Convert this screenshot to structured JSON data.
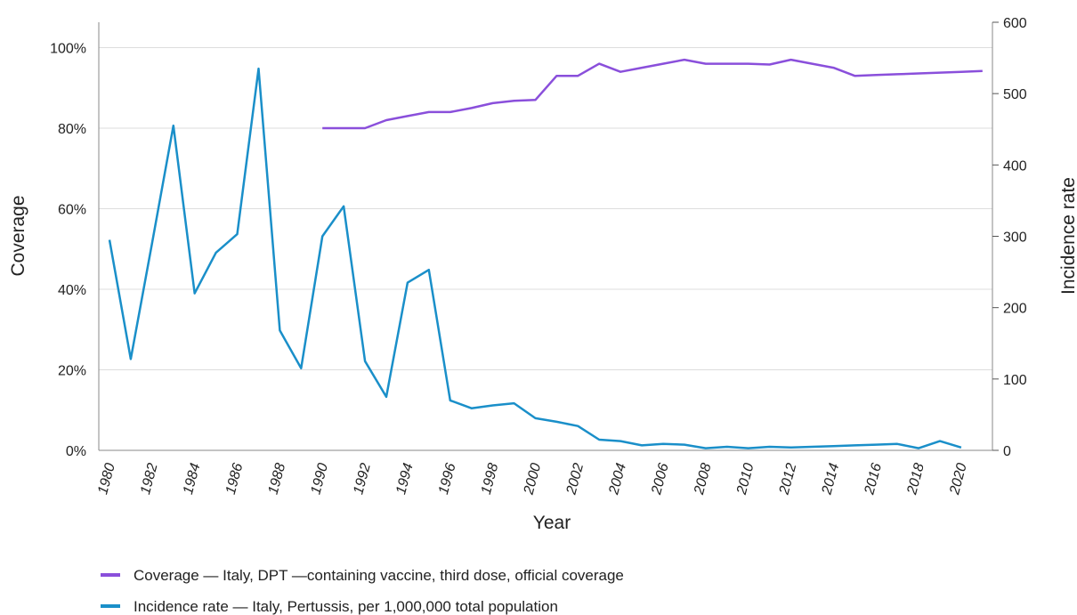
{
  "chart_data": {
    "type": "line",
    "xlabel": "Year",
    "ylabel_left": "Coverage",
    "ylabel_right": "Incidence rate",
    "x_ticks": [
      "1980",
      "1982",
      "1984",
      "1986",
      "1988",
      "1990",
      "1992",
      "1994",
      "1996",
      "1998",
      "2000",
      "2002",
      "2004",
      "2006",
      "2008",
      "2010",
      "2012",
      "2014",
      "2016",
      "2018",
      "2020"
    ],
    "y_left_ticks": [
      "0%",
      "20%",
      "40%",
      "60%",
      "80%",
      "100%"
    ],
    "y_left_range": [
      0,
      100
    ],
    "y_right_ticks": [
      "0",
      "100",
      "200",
      "300",
      "400",
      "500",
      "600"
    ],
    "y_right_range": [
      0,
      600
    ],
    "grid": true,
    "legend_position": "bottom-left",
    "series": [
      {
        "name": "Coverage — Italy, DPT —containing vaccine, third dose, official coverage",
        "axis": "left",
        "color": "#8a4fdb",
        "x": [
          1990,
          1991,
          1992,
          1993,
          1994,
          1995,
          1996,
          1997,
          1998,
          1999,
          2000,
          2001,
          2002,
          2003,
          2004,
          2005,
          2006,
          2007,
          2008,
          2009,
          2010,
          2011,
          2012,
          2013,
          2014,
          2015,
          2016,
          2017,
          2018,
          2019,
          2020,
          2021
        ],
        "values": [
          80,
          80,
          80,
          82,
          83,
          84,
          84,
          85,
          86.2,
          86.8,
          87,
          93,
          93,
          96,
          94,
          95,
          96,
          97,
          96,
          96,
          96,
          95.8,
          97,
          96,
          95,
          93,
          93.2,
          93.4,
          93.6,
          93.8,
          94,
          94.2
        ]
      },
      {
        "name": "Incidence rate — Italy, Pertussis, per 1,000,000 total population",
        "axis": "right",
        "color": "#1a8fc9",
        "x": [
          1980,
          1981,
          1982,
          1983,
          1984,
          1985,
          1986,
          1987,
          1988,
          1989,
          1990,
          1991,
          1992,
          1993,
          1994,
          1995,
          1996,
          1997,
          1998,
          1999,
          2000,
          2001,
          2002,
          2003,
          2004,
          2005,
          2006,
          2007,
          2008,
          2009,
          2010,
          2011,
          2012,
          2013,
          2014,
          2015,
          2016,
          2017,
          2018,
          2019,
          2020
        ],
        "values": [
          295,
          128,
          290,
          455,
          220,
          277,
          303,
          535,
          168,
          115,
          300,
          342,
          125,
          75,
          235,
          253,
          70,
          59,
          63,
          66,
          45,
          40,
          34,
          15,
          13,
          7,
          9,
          8,
          3,
          5,
          3,
          5,
          4,
          5,
          6,
          7,
          8,
          9,
          3,
          13,
          4
        ]
      }
    ]
  }
}
